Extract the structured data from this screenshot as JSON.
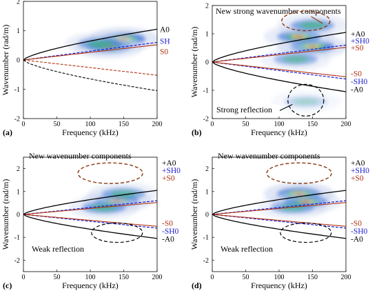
{
  "colors": {
    "A0": "#000000",
    "SH0": "#1a1acc",
    "S0": "#b03010",
    "ellipse_red": "#8b3a10"
  },
  "chart_data": [
    {
      "type": "heatmap",
      "panel_label": "(a)",
      "xlabel": "Frequency (kHz)",
      "ylabel": "Wavenumber (rad/m)",
      "xlim": [
        0,
        200
      ],
      "ylim": [
        -2,
        2
      ],
      "xticks": [
        "0",
        "50",
        "100",
        "150",
        "200"
      ],
      "yticks": [
        "2",
        "1",
        "0",
        "-1",
        "-2"
      ],
      "mode_labels": [
        "A0",
        "SH",
        "S0"
      ],
      "annotations": [],
      "energy_blobs": [
        {
          "f": 150,
          "k": 0.72,
          "intensity": 1.0
        },
        {
          "f": 128,
          "k": 0.45,
          "intensity": 0.8
        },
        {
          "f": 115,
          "k": 0.55,
          "intensity": 0.7
        }
      ]
    },
    {
      "type": "heatmap",
      "panel_label": "(b)",
      "xlabel": "Frequency (kHz)",
      "ylabel": "Wavenumber (rad/m)",
      "xlim": [
        0,
        200
      ],
      "ylim": [
        -2,
        2
      ],
      "xticks": [
        "0",
        "50",
        "100",
        "150",
        "200"
      ],
      "yticks": [
        "2",
        "1",
        "0",
        "-1",
        "-2"
      ],
      "mode_labels": [
        "+A0",
        "+SH0",
        "+S0",
        "-S0",
        "-SH0",
        "-A0"
      ],
      "annotations": [
        "New strong wavenumber components",
        "Strong reflection"
      ],
      "energy_blobs": [
        {
          "f": 150,
          "k": 0.55,
          "intensity": 1.0
        },
        {
          "f": 130,
          "k": 0.9,
          "intensity": 0.8
        },
        {
          "f": 150,
          "k": 1.3,
          "intensity": 0.7
        },
        {
          "f": 125,
          "k": 0.1,
          "intensity": 0.6
        },
        {
          "f": 140,
          "k": -1.4,
          "intensity": 0.3
        }
      ]
    },
    {
      "type": "heatmap",
      "panel_label": "(c)",
      "xlabel": "Frequency (kHz)",
      "ylabel": "Wavenumber (rad/m)",
      "xlim": [
        0,
        200
      ],
      "ylim": [
        -2.5,
        2.5
      ],
      "xticks": [
        "0",
        "50",
        "100",
        "150",
        "200"
      ],
      "yticks": [
        "2",
        "1",
        "0",
        "-1",
        "-2"
      ],
      "mode_labels": [
        "+A0",
        "+SH0",
        "+S0",
        "-S0",
        "-SH0",
        "-A0"
      ],
      "annotations": [
        "New wavenumber components",
        "Weak reflection"
      ],
      "energy_blobs": [
        {
          "f": 140,
          "k": 0.6,
          "intensity": 0.9
        },
        {
          "f": 120,
          "k": 0.3,
          "intensity": 0.7
        },
        {
          "f": 150,
          "k": 0.9,
          "intensity": 0.6
        }
      ]
    },
    {
      "type": "heatmap",
      "panel_label": "(d)",
      "xlabel": "Frequency (kHz)",
      "ylabel": "Wavenumber (rad/m)",
      "xlim": [
        0,
        200
      ],
      "ylim": [
        -2.5,
        2.5
      ],
      "xticks": [
        "0",
        "50",
        "100",
        "150",
        "200"
      ],
      "yticks": [
        "2",
        "1",
        "0",
        "-1",
        "-2"
      ],
      "mode_labels": [
        "+A0",
        "+SH0",
        "+S0",
        "-S0",
        "-SH0",
        "-A0"
      ],
      "annotations": [
        "New wavenumber components",
        "Weak reflection"
      ],
      "energy_blobs": [
        {
          "f": 130,
          "k": 0.9,
          "intensity": 1.0
        },
        {
          "f": 140,
          "k": 0.55,
          "intensity": 0.8
        },
        {
          "f": 120,
          "k": 0.3,
          "intensity": 0.6
        }
      ]
    }
  ]
}
